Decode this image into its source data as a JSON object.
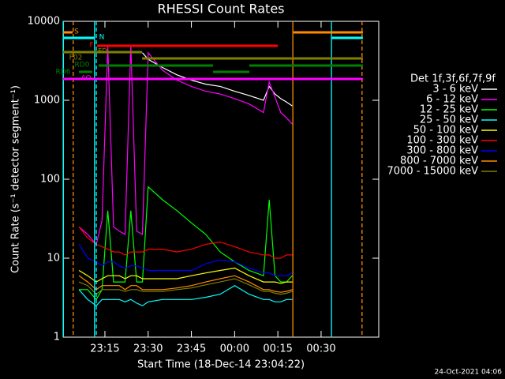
{
  "chart_data": {
    "type": "line",
    "title": "RHESSI Count Rates",
    "xlabel": "Start Time (18-Dec-14 23:04:22)",
    "ylabel": "Count Rate (s⁻¹ detector segment⁻¹)",
    "footer": "24-Oct-2021 04:06",
    "legend_title": "Det 1f,3f,6f,7f,9f",
    "log_y": true,
    "xlim": [
      0.5,
      110
    ],
    "xticks": [
      {
        "value": 15,
        "label": "23:15"
      },
      {
        "value": 30,
        "label": "23:30"
      },
      {
        "value": 45,
        "label": "23:45"
      },
      {
        "value": 60,
        "label": "00:00"
      },
      {
        "value": 75,
        "label": "00:15"
      },
      {
        "value": 90,
        "label": "00:30"
      }
    ],
    "ylim": [
      1,
      10000
    ],
    "yticks": [
      1,
      10,
      100,
      1000,
      10000
    ],
    "x": [
      6,
      9,
      12,
      14,
      16,
      18,
      20,
      22,
      24,
      26,
      28,
      30,
      35,
      40,
      45,
      50,
      55,
      60,
      65,
      70,
      72,
      74,
      76,
      78,
      80
    ],
    "series": [
      {
        "name": "3 - 6 keV",
        "color": "#ffffff",
        "values": [
          null,
          null,
          null,
          null,
          null,
          null,
          null,
          null,
          null,
          null,
          4000,
          3300,
          2600,
          2100,
          1800,
          1600,
          1500,
          1300,
          1150,
          1000,
          1500,
          1200,
          1050,
          950,
          850
        ]
      },
      {
        "name": "6 - 12 keV",
        "color": "#ff00ff",
        "values": [
          25,
          20,
          15,
          30,
          5000,
          25,
          22,
          20,
          5000,
          22,
          20,
          4000,
          2400,
          1800,
          1500,
          1300,
          1200,
          1050,
          900,
          700,
          1700,
          1100,
          700,
          600,
          500
        ]
      },
      {
        "name": "12 - 25 keV",
        "color": "#00ff00",
        "values": [
          4,
          4,
          3,
          4,
          40,
          5,
          5,
          5,
          40,
          5,
          5,
          80,
          55,
          40,
          28,
          20,
          12,
          9,
          7,
          6,
          55,
          6,
          5,
          5,
          6
        ]
      },
      {
        "name": "25 - 50 keV",
        "color": "#00ffff",
        "values": [
          4,
          3,
          2.5,
          3,
          3,
          3,
          3,
          2.8,
          3,
          2.7,
          2.5,
          2.8,
          3,
          3,
          3,
          3.2,
          3.5,
          4.5,
          3.5,
          3,
          3,
          2.8,
          2.8,
          3,
          3
        ]
      },
      {
        "name": "50 - 100 keV",
        "color": "#ffff00",
        "values": [
          7,
          6,
          5,
          5.5,
          6,
          6,
          6,
          5.5,
          6,
          6,
          5.5,
          5.5,
          5.5,
          5.5,
          6,
          6.5,
          7,
          7.5,
          6,
          5,
          5,
          5,
          4.8,
          5,
          5
        ]
      },
      {
        "name": "100 - 300 keV",
        "color": "#ff0000",
        "values": [
          25,
          18,
          15,
          14,
          13,
          12,
          12,
          11,
          12,
          12,
          12,
          13,
          13,
          12,
          13,
          15,
          16,
          14,
          12,
          11,
          11,
          10,
          10,
          11,
          11
        ]
      },
      {
        "name": "300 - 800 keV",
        "color": "#0000ff",
        "values": [
          15,
          10,
          9,
          8,
          9,
          9,
          8,
          7.5,
          8,
          8,
          7.5,
          7,
          7,
          7,
          7,
          8.5,
          9.5,
          9,
          7.5,
          6.5,
          6.5,
          6,
          6,
          6,
          6.5
        ]
      },
      {
        "name": "800 - 7000 keV",
        "color": "#ff8c00",
        "values": [
          6,
          5,
          4,
          4.5,
          4.5,
          4.5,
          4.5,
          4,
          4.5,
          4.5,
          4,
          4,
          4,
          4.2,
          4.5,
          5,
          5.5,
          6,
          5,
          4,
          4,
          3.8,
          3.7,
          3.8,
          4
        ]
      },
      {
        "name": "7000 - 15000 keV",
        "color": "#808000",
        "values": [
          5,
          4.5,
          3.5,
          4,
          4,
          4,
          4,
          3.8,
          4,
          4,
          3.8,
          3.8,
          3.8,
          4,
          4.2,
          4.6,
          5,
          5.5,
          4.6,
          3.8,
          3.8,
          3.6,
          3.5,
          3.6,
          3.8
        ]
      }
    ],
    "flags": [
      {
        "label": "S",
        "color": "#ff8c00",
        "segments": [
          [
            0.5,
            3.8
          ],
          [
            80.4,
            104.5
          ]
        ]
      },
      {
        "label": "N",
        "color": "#00ffff",
        "segments": [
          [
            0.5,
            11.4
          ],
          [
            93.6,
            104.5
          ]
        ]
      },
      {
        "label": "F",
        "color": "#ff0000",
        "segments": [
          [
            12.3,
            75.0
          ]
        ]
      },
      {
        "label": "FD",
        "color": "#808000",
        "segments": [
          [
            0.5,
            27.9
          ]
        ]
      },
      {
        "label": "F02",
        "color": "#808000",
        "segments": [
          [
            27.9,
            104.5
          ]
        ]
      },
      {
        "label": "RD0",
        "color": "#008000",
        "segments": [
          [
            12.8,
            52.5
          ],
          [
            65.1,
            104.5
          ]
        ]
      },
      {
        "label": "RD6",
        "color": "#008000",
        "segments": [
          [
            6.0,
            10.6
          ],
          [
            52.5,
            65.1
          ]
        ]
      },
      {
        "label": "AO",
        "color": "#ff00ff",
        "segments": [
          [
            0.5,
            104.5
          ]
        ]
      }
    ],
    "vlines": [
      {
        "x": 0.6,
        "color": "#00ffff",
        "dashed": false
      },
      {
        "x": 4.0,
        "color": "#ff8c00",
        "dashed": true
      },
      {
        "x": 11.4,
        "color": "#00ffff",
        "dashed": false
      },
      {
        "x": 12.0,
        "color": "#00ffff",
        "dashed": true
      },
      {
        "x": 80.2,
        "color": "#ff8c00",
        "dashed": false
      },
      {
        "x": 93.6,
        "color": "#00ffff",
        "dashed": false
      },
      {
        "x": 104.2,
        "color": "#ff8c00",
        "dashed": true
      }
    ]
  }
}
